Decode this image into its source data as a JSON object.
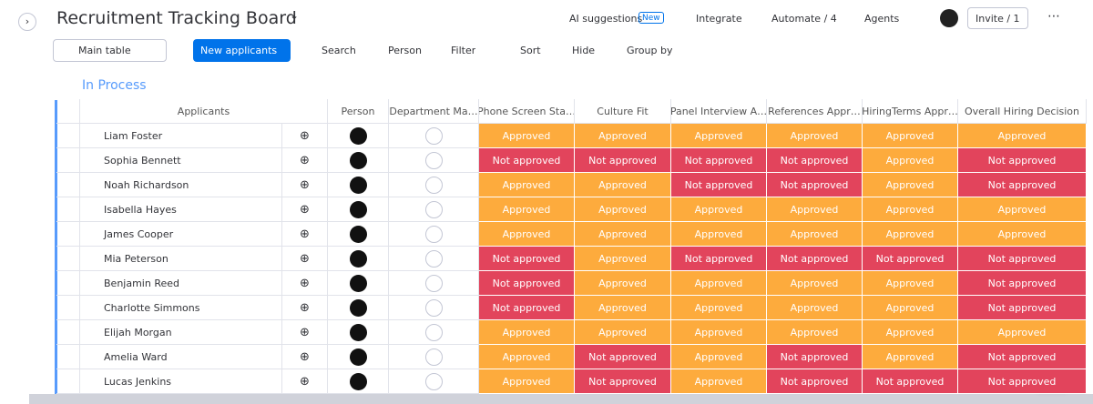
{
  "header": {
    "title": "Recruitment Tracking Board",
    "actions": [
      "AI suggestions",
      "Integrate",
      "Automate / 4",
      "Agents"
    ],
    "badge": "New",
    "invite": "Invite / 1"
  },
  "toolbar": {
    "view": "Main table",
    "primary": "New applicants",
    "tools": [
      "Search",
      "Person",
      "Filter",
      "Sort",
      "Hide",
      "Group by"
    ]
  },
  "group": {
    "title": "In Process"
  },
  "status_colors": {
    "Approved": "#fdab3d",
    "Not approved": "#e2445c"
  },
  "table": {
    "columns": [
      "Applicants",
      "Person",
      "Department Ma…",
      "Phone Screen Sta…",
      "Culture Fit",
      "Panel Interview A…",
      "References Appr…",
      "HiringTerms Appr…",
      "Overall Hiring Decision"
    ],
    "rows": [
      [
        "Liam Foster",
        "Approved",
        "Approved",
        "Approved",
        "Approved",
        "Approved",
        "Approved"
      ],
      [
        "Sophia Bennett",
        "Not approved",
        "Not approved",
        "Not approved",
        "Not approved",
        "Approved",
        "Not approved"
      ],
      [
        "Noah Richardson",
        "Approved",
        "Approved",
        "Not approved",
        "Not approved",
        "Approved",
        "Not approved"
      ],
      [
        "Isabella Hayes",
        "Approved",
        "Approved",
        "Approved",
        "Approved",
        "Approved",
        "Approved"
      ],
      [
        "James Cooper",
        "Approved",
        "Approved",
        "Approved",
        "Approved",
        "Approved",
        "Approved"
      ],
      [
        "Mia Peterson",
        "Not approved",
        "Approved",
        "Not approved",
        "Not approved",
        "Not approved",
        "Not approved"
      ],
      [
        "Benjamin Reed",
        "Not approved",
        "Approved",
        "Approved",
        "Approved",
        "Approved",
        "Not approved"
      ],
      [
        "Charlotte Simmons",
        "Not approved",
        "Approved",
        "Approved",
        "Approved",
        "Approved",
        "Not approved"
      ],
      [
        "Elijah Morgan",
        "Approved",
        "Approved",
        "Approved",
        "Approved",
        "Approved",
        "Approved"
      ],
      [
        "Amelia Ward",
        "Approved",
        "Not approved",
        "Approved",
        "Not approved",
        "Approved",
        "Not approved"
      ],
      [
        "Lucas Jenkins",
        "Approved",
        "Not approved",
        "Approved",
        "Not approved",
        "Not approved",
        "Not approved"
      ]
    ]
  }
}
